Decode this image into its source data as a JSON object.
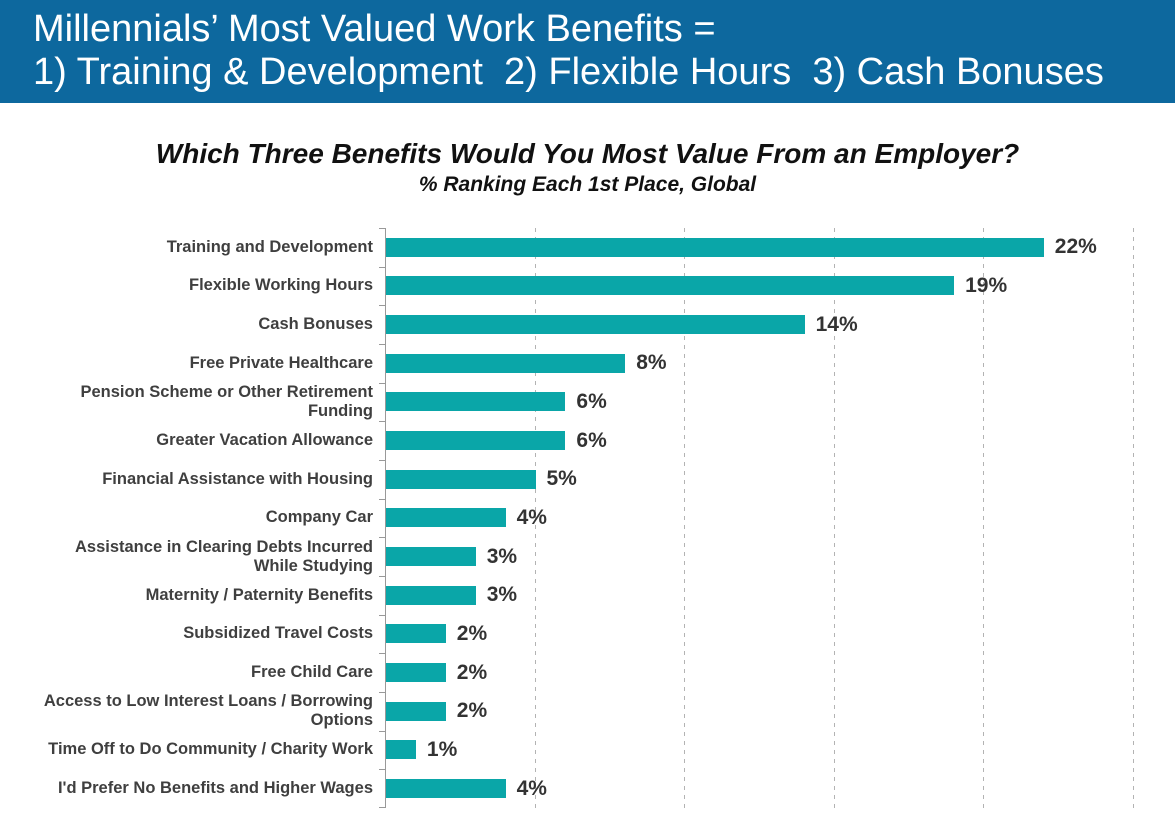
{
  "header": {
    "line1": "Millennials’ Most Valued Work Benefits =",
    "line2": "1) Training & Development  2) Flexible Hours  3) Cash Bonuses"
  },
  "chart_data": {
    "type": "bar",
    "orientation": "horizontal",
    "title": "Which Three Benefits Would You Most Value From an Employer?",
    "subtitle": "% Ranking Each 1st Place, Global",
    "categories": [
      "Training and Development",
      "Flexible Working Hours",
      "Cash Bonuses",
      "Free Private Healthcare",
      "Pension Scheme or Other Retirement Funding",
      "Greater Vacation Allowance",
      "Financial Assistance with Housing",
      "Company Car",
      "Assistance in Clearing Debts Incurred While Studying",
      "Maternity / Paternity Benefits",
      "Subsidized Travel Costs",
      "Free Child Care",
      "Access to Low Interest Loans / Borrowing Options",
      "Time Off to Do Community / Charity Work",
      "I'd Prefer No Benefits and Higher Wages"
    ],
    "values": [
      22,
      19,
      14,
      8,
      6,
      6,
      5,
      4,
      3,
      3,
      2,
      2,
      2,
      1,
      4
    ],
    "value_labels": [
      "22%",
      "19%",
      "14%",
      "8%",
      "6%",
      "6%",
      "5%",
      "4%",
      "3%",
      "3%",
      "2%",
      "2%",
      "2%",
      "1%",
      "4%"
    ],
    "xlabel": "",
    "ylabel": "",
    "xlim": [
      0,
      26.4
    ],
    "gridlines_percent": [
      5,
      10,
      15,
      20,
      25
    ],
    "grid_style": "dashed-vertical",
    "legend": "none"
  },
  "colors": {
    "banner_bg": "#0d689e",
    "banner_text": "#ffffff",
    "bar": "#0aa6a8",
    "title_text": "#111111",
    "category_label": "#3f3f3f",
    "value_label": "#333333",
    "axis_line": "#999999",
    "gridline": "#b3b3b3",
    "background": "#ffffff"
  }
}
